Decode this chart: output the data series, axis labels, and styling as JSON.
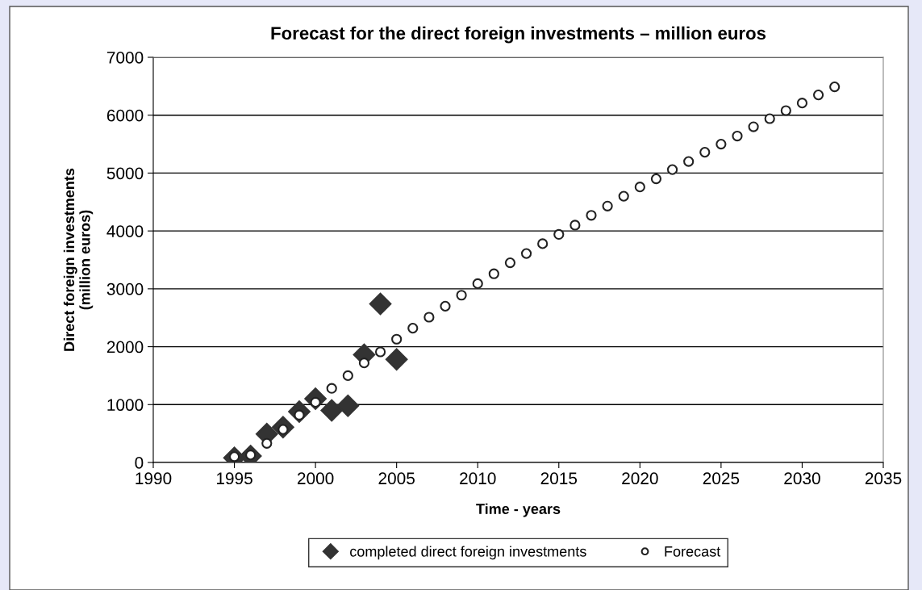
{
  "chart_data": {
    "type": "scatter",
    "title": "Forecast for the direct foreign investments – million euros",
    "xlabel": "Time - years",
    "ylabel": "Direct foreign investments\n(million euros)",
    "xlim": [
      1990,
      2035
    ],
    "xticks": [
      1990,
      1995,
      2000,
      2005,
      2010,
      2015,
      2020,
      2025,
      2030,
      2035
    ],
    "ylim": [
      0,
      7000
    ],
    "yticks": [
      0,
      1000,
      2000,
      3000,
      4000,
      5000,
      6000,
      7000
    ],
    "grid": "y",
    "legend": "bottom",
    "series": [
      {
        "name": "completed direct foreign investments",
        "color": "#333333",
        "marker": "diamond",
        "x": [
          1995,
          1996,
          1997,
          1998,
          1999,
          2000,
          2001,
          2002,
          2003,
          2004,
          2005
        ],
        "values": [
          80,
          110,
          490,
          610,
          880,
          1100,
          900,
          980,
          1860,
          2740,
          1780
        ]
      },
      {
        "name": "Forecast",
        "color": "#222222",
        "marker": "circle",
        "x": [
          1995,
          1996,
          1997,
          1998,
          1999,
          2000,
          2001,
          2002,
          2003,
          2004,
          2005,
          2006,
          2007,
          2008,
          2009,
          2010,
          2011,
          2012,
          2013,
          2014,
          2015,
          2016,
          2017,
          2018,
          2019,
          2020,
          2021,
          2022,
          2023,
          2024,
          2025,
          2026,
          2027,
          2028,
          2029,
          2030,
          2031,
          2032
        ],
        "values": [
          100,
          130,
          330,
          570,
          820,
          1040,
          1280,
          1500,
          1720,
          1910,
          2130,
          2320,
          2510,
          2700,
          2890,
          3090,
          3260,
          3450,
          3610,
          3780,
          3940,
          4100,
          4270,
          4430,
          4600,
          4760,
          4900,
          5060,
          5200,
          5360,
          5500,
          5640,
          5800,
          5940,
          6080,
          6210,
          6350,
          6490
        ]
      }
    ]
  }
}
